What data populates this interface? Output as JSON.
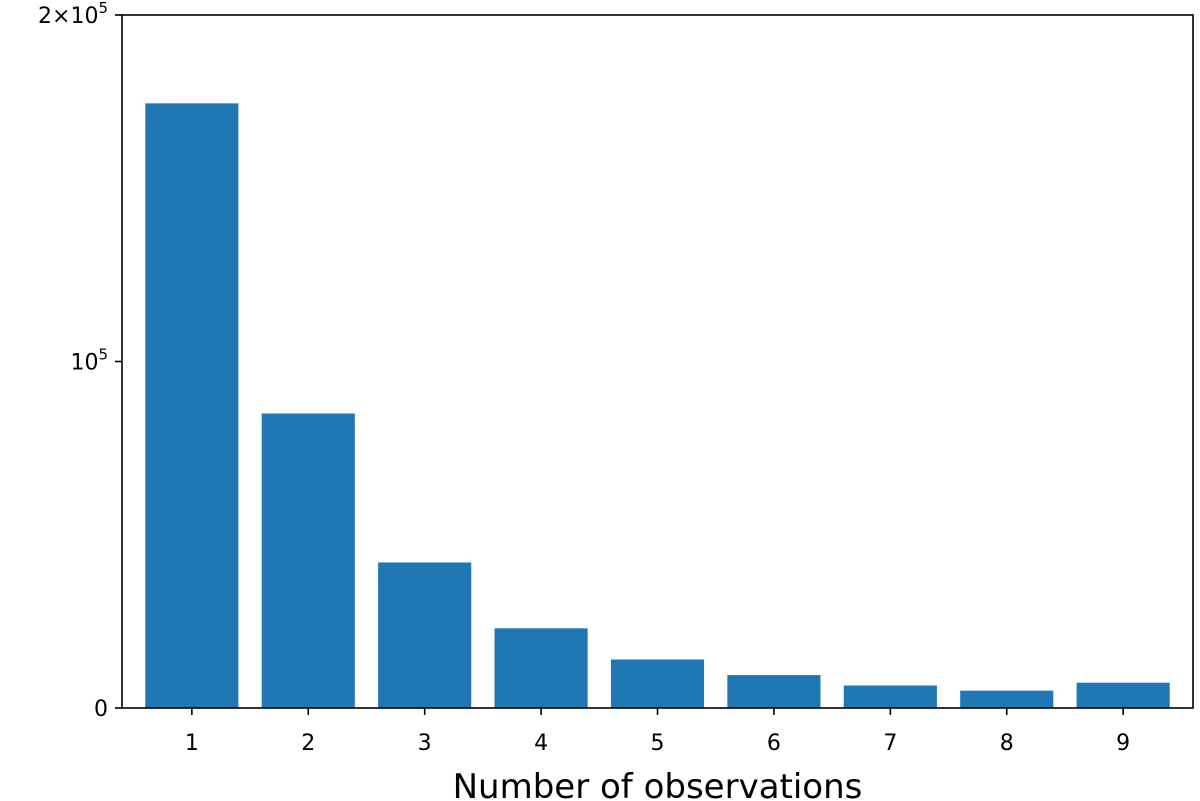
{
  "chart_data": {
    "type": "bar",
    "title": "",
    "xlabel": "Number of observations",
    "ylabel": "",
    "categories": [
      "1",
      "2",
      "3",
      "4",
      "5",
      "6",
      "7",
      "8",
      "9"
    ],
    "series": [
      {
        "values": [
          174500,
          85000,
          42000,
          23000,
          14000,
          9500,
          6500,
          5000,
          7300
        ]
      }
    ],
    "ylim": [
      0,
      200000
    ],
    "y_ticks": [
      {
        "value": 0,
        "base": "0",
        "exp": ""
      },
      {
        "value": 100000,
        "base": "10",
        "exp": "5"
      },
      {
        "value": 200000,
        "base": "2×10",
        "exp": "5"
      }
    ],
    "grid": false,
    "bar_color": "#1f77b4"
  }
}
